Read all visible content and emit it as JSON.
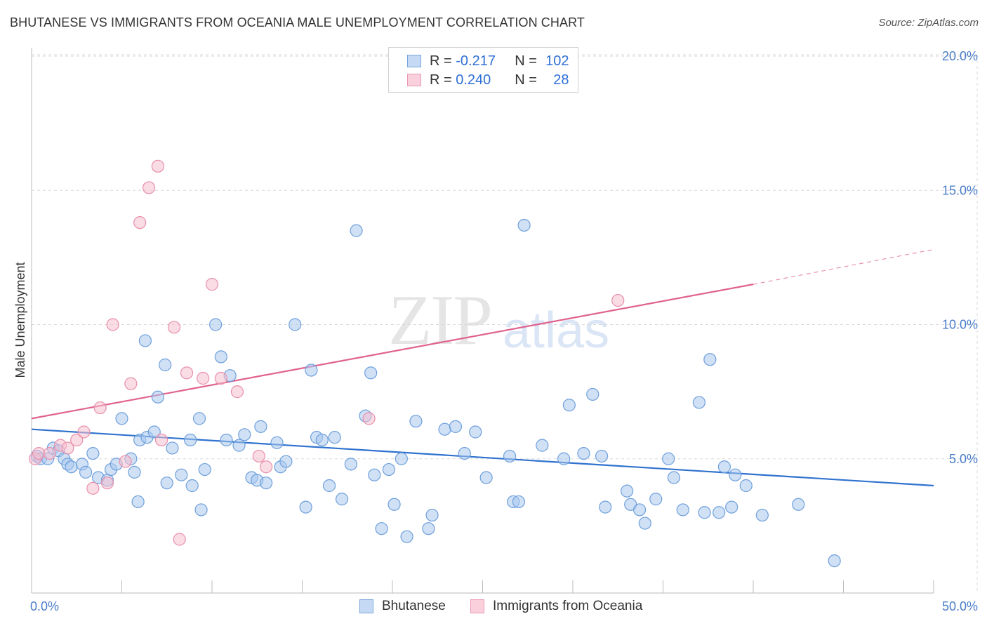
{
  "header": {
    "title": "BHUTANESE VS IMMIGRANTS FROM OCEANIA MALE UNEMPLOYMENT CORRELATION CHART",
    "source": "Source: ZipAtlas.com"
  },
  "watermark": {
    "zip": "ZIP",
    "atlas": "atlas"
  },
  "legend": {
    "row1": {
      "r_label": "R = ",
      "r_value": "-0.217",
      "n_label": "N = ",
      "n_value": "102"
    },
    "row2": {
      "r_label": "R = ",
      "r_value": "0.240",
      "n_label": "N = ",
      "n_value": "28"
    }
  },
  "bottom_legend": {
    "series1": "Bhutanese",
    "series2": "Immigrants from Oceania"
  },
  "colors": {
    "blue_fill": "#aac8ef",
    "blue_stroke": "#6e9fdb",
    "blue_line": "#2f72cf",
    "pink_fill": "#f6c0d0",
    "pink_stroke": "#e88fab",
    "pink_line": "#e0628e",
    "grid": "#d9d9d9",
    "axis_text": "#4a7cc9"
  },
  "chart_data": {
    "type": "scatter",
    "title": "BHUTANESE VS IMMIGRANTS FROM OCEANIA MALE UNEMPLOYMENT CORRELATION CHART",
    "xlabel": "",
    "ylabel": "Male Unemployment",
    "xlim": [
      0,
      50
    ],
    "ylim": [
      0,
      20
    ],
    "x_tick_labels": [
      "0.0%",
      "50.0%"
    ],
    "y_ticks": [
      5,
      10,
      15,
      20
    ],
    "y_tick_labels": [
      "5.0%",
      "10.0%",
      "15.0%",
      "20.0%"
    ],
    "grid": true,
    "legend_position": "top-center",
    "series": [
      {
        "name": "Bhutanese",
        "R": -0.217,
        "N": 102,
        "trend": {
          "x": [
            0,
            50
          ],
          "y": [
            6.1,
            4.0
          ]
        },
        "points": [
          [
            0.3,
            5.1
          ],
          [
            0.5,
            5.0
          ],
          [
            0.9,
            5.0
          ],
          [
            1.2,
            5.4
          ],
          [
            1.5,
            5.3
          ],
          [
            1.8,
            5.0
          ],
          [
            2.0,
            4.8
          ],
          [
            2.2,
            4.7
          ],
          [
            2.8,
            4.8
          ],
          [
            3.0,
            4.5
          ],
          [
            3.4,
            5.2
          ],
          [
            3.7,
            4.3
          ],
          [
            4.2,
            4.2
          ],
          [
            4.4,
            4.6
          ],
          [
            4.7,
            4.8
          ],
          [
            5.0,
            6.5
          ],
          [
            5.5,
            5.0
          ],
          [
            5.9,
            3.4
          ],
          [
            5.7,
            4.5
          ],
          [
            6.0,
            5.7
          ],
          [
            6.3,
            9.4
          ],
          [
            6.4,
            5.8
          ],
          [
            6.8,
            6.0
          ],
          [
            7.0,
            7.3
          ],
          [
            7.4,
            8.5
          ],
          [
            7.5,
            4.1
          ],
          [
            7.8,
            5.4
          ],
          [
            8.3,
            4.4
          ],
          [
            8.8,
            5.7
          ],
          [
            8.9,
            4.0
          ],
          [
            9.3,
            6.5
          ],
          [
            9.4,
            3.1
          ],
          [
            9.6,
            4.6
          ],
          [
            10.2,
            10.0
          ],
          [
            10.5,
            8.8
          ],
          [
            10.8,
            5.7
          ],
          [
            11.0,
            8.1
          ],
          [
            11.5,
            5.5
          ],
          [
            11.8,
            5.9
          ],
          [
            12.2,
            4.3
          ],
          [
            12.5,
            4.2
          ],
          [
            12.7,
            6.2
          ],
          [
            13.0,
            4.1
          ],
          [
            13.6,
            5.6
          ],
          [
            13.8,
            4.7
          ],
          [
            14.1,
            4.9
          ],
          [
            14.6,
            10.0
          ],
          [
            15.2,
            3.2
          ],
          [
            15.5,
            8.3
          ],
          [
            15.8,
            5.8
          ],
          [
            16.1,
            5.7
          ],
          [
            16.5,
            4.0
          ],
          [
            16.8,
            5.8
          ],
          [
            17.2,
            3.5
          ],
          [
            17.7,
            4.8
          ],
          [
            18.0,
            13.5
          ],
          [
            18.5,
            6.6
          ],
          [
            18.8,
            8.2
          ],
          [
            19.0,
            4.4
          ],
          [
            19.4,
            2.4
          ],
          [
            19.8,
            4.6
          ],
          [
            20.1,
            3.3
          ],
          [
            20.5,
            5.0
          ],
          [
            20.8,
            2.1
          ],
          [
            21.3,
            6.4
          ],
          [
            22.0,
            2.4
          ],
          [
            22.2,
            2.9
          ],
          [
            22.9,
            6.1
          ],
          [
            23.5,
            6.2
          ],
          [
            24.0,
            5.2
          ],
          [
            24.6,
            6.0
          ],
          [
            25.2,
            4.3
          ],
          [
            26.5,
            5.1
          ],
          [
            26.7,
            3.4
          ],
          [
            27.0,
            3.4
          ],
          [
            27.3,
            13.7
          ],
          [
            28.3,
            5.5
          ],
          [
            29.5,
            5.0
          ],
          [
            29.8,
            7.0
          ],
          [
            30.6,
            5.2
          ],
          [
            31.1,
            7.4
          ],
          [
            31.6,
            5.1
          ],
          [
            31.8,
            3.2
          ],
          [
            33.0,
            3.8
          ],
          [
            33.2,
            3.3
          ],
          [
            33.7,
            3.1
          ],
          [
            34.0,
            2.6
          ],
          [
            34.6,
            3.5
          ],
          [
            35.3,
            5.0
          ],
          [
            35.6,
            4.3
          ],
          [
            36.1,
            3.1
          ],
          [
            37.0,
            7.1
          ],
          [
            37.3,
            3.0
          ],
          [
            37.6,
            8.7
          ],
          [
            38.1,
            3.0
          ],
          [
            38.4,
            4.7
          ],
          [
            38.8,
            3.2
          ],
          [
            39.0,
            4.4
          ],
          [
            39.6,
            4.0
          ],
          [
            40.5,
            2.9
          ],
          [
            42.5,
            3.3
          ],
          [
            44.5,
            1.2
          ]
        ]
      },
      {
        "name": "Immigrants from Oceania",
        "R": 0.24,
        "N": 28,
        "trend": {
          "x": [
            0,
            40
          ],
          "y": [
            6.5,
            11.5
          ],
          "dashed_extension_to": [
            50,
            12.8
          ]
        },
        "points": [
          [
            0.2,
            5.0
          ],
          [
            0.4,
            5.2
          ],
          [
            1.0,
            5.2
          ],
          [
            1.6,
            5.5
          ],
          [
            2.0,
            5.4
          ],
          [
            2.5,
            5.7
          ],
          [
            2.9,
            6.0
          ],
          [
            3.4,
            3.9
          ],
          [
            3.8,
            6.9
          ],
          [
            4.2,
            4.1
          ],
          [
            4.5,
            10.0
          ],
          [
            5.2,
            4.9
          ],
          [
            5.5,
            7.8
          ],
          [
            6.0,
            13.8
          ],
          [
            6.5,
            15.1
          ],
          [
            7.0,
            15.9
          ],
          [
            7.2,
            5.7
          ],
          [
            7.9,
            9.9
          ],
          [
            8.2,
            2.0
          ],
          [
            8.6,
            8.2
          ],
          [
            9.5,
            8.0
          ],
          [
            10.0,
            11.5
          ],
          [
            10.5,
            8.0
          ],
          [
            11.4,
            7.5
          ],
          [
            12.6,
            5.1
          ],
          [
            13.0,
            4.7
          ],
          [
            18.7,
            6.5
          ],
          [
            32.5,
            10.9
          ]
        ]
      }
    ]
  }
}
